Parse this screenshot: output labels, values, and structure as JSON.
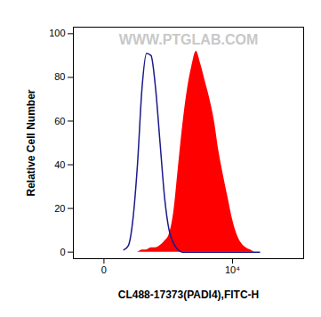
{
  "chart_data": {
    "type": "histogram",
    "watermark": "WWW.PTGLAB.COM",
    "xlabel": "CL488-17373(PADI4),FITC-H",
    "ylabel": "Relative Cell Number",
    "log": "x",
    "x": [
      104,
      140,
      183,
      233,
      292,
      361,
      442,
      538,
      650,
      782,
      938,
      1121,
      1337,
      1590,
      1889,
      2240,
      2652,
      3138,
      3709,
      4382,
      5172,
      6103,
      7197,
      8485,
      10000,
      11780,
      13880,
      16340,
      19240,
      22660,
      26670
    ],
    "series": [
      {
        "type": "area",
        "color": "#ff0000",
        "values": [
          0,
          0,
          0,
          0,
          1,
          1,
          2,
          2,
          3,
          5,
          8,
          18,
          38,
          58,
          74,
          85,
          92,
          86,
          78,
          70,
          60,
          46,
          35,
          25,
          15,
          8,
          4,
          2,
          1,
          0,
          0
        ]
      },
      {
        "type": "line",
        "color": "#1a1a8c",
        "values": [
          1,
          3,
          15,
          40,
          75,
          91,
          90,
          75,
          50,
          25,
          10,
          4,
          1,
          0,
          0,
          0,
          0,
          0,
          0,
          0,
          0,
          0,
          0,
          0,
          0,
          0,
          0,
          0,
          0,
          0,
          0
        ]
      }
    ],
    "xlim": [
      -200,
      130000
    ],
    "xticks": [
      0,
      {
        "value": 10000,
        "label": "10⁴"
      }
    ],
    "ylim": [
      -3,
      103
    ],
    "yticks": [
      0,
      20,
      40,
      60,
      80,
      100
    ]
  }
}
